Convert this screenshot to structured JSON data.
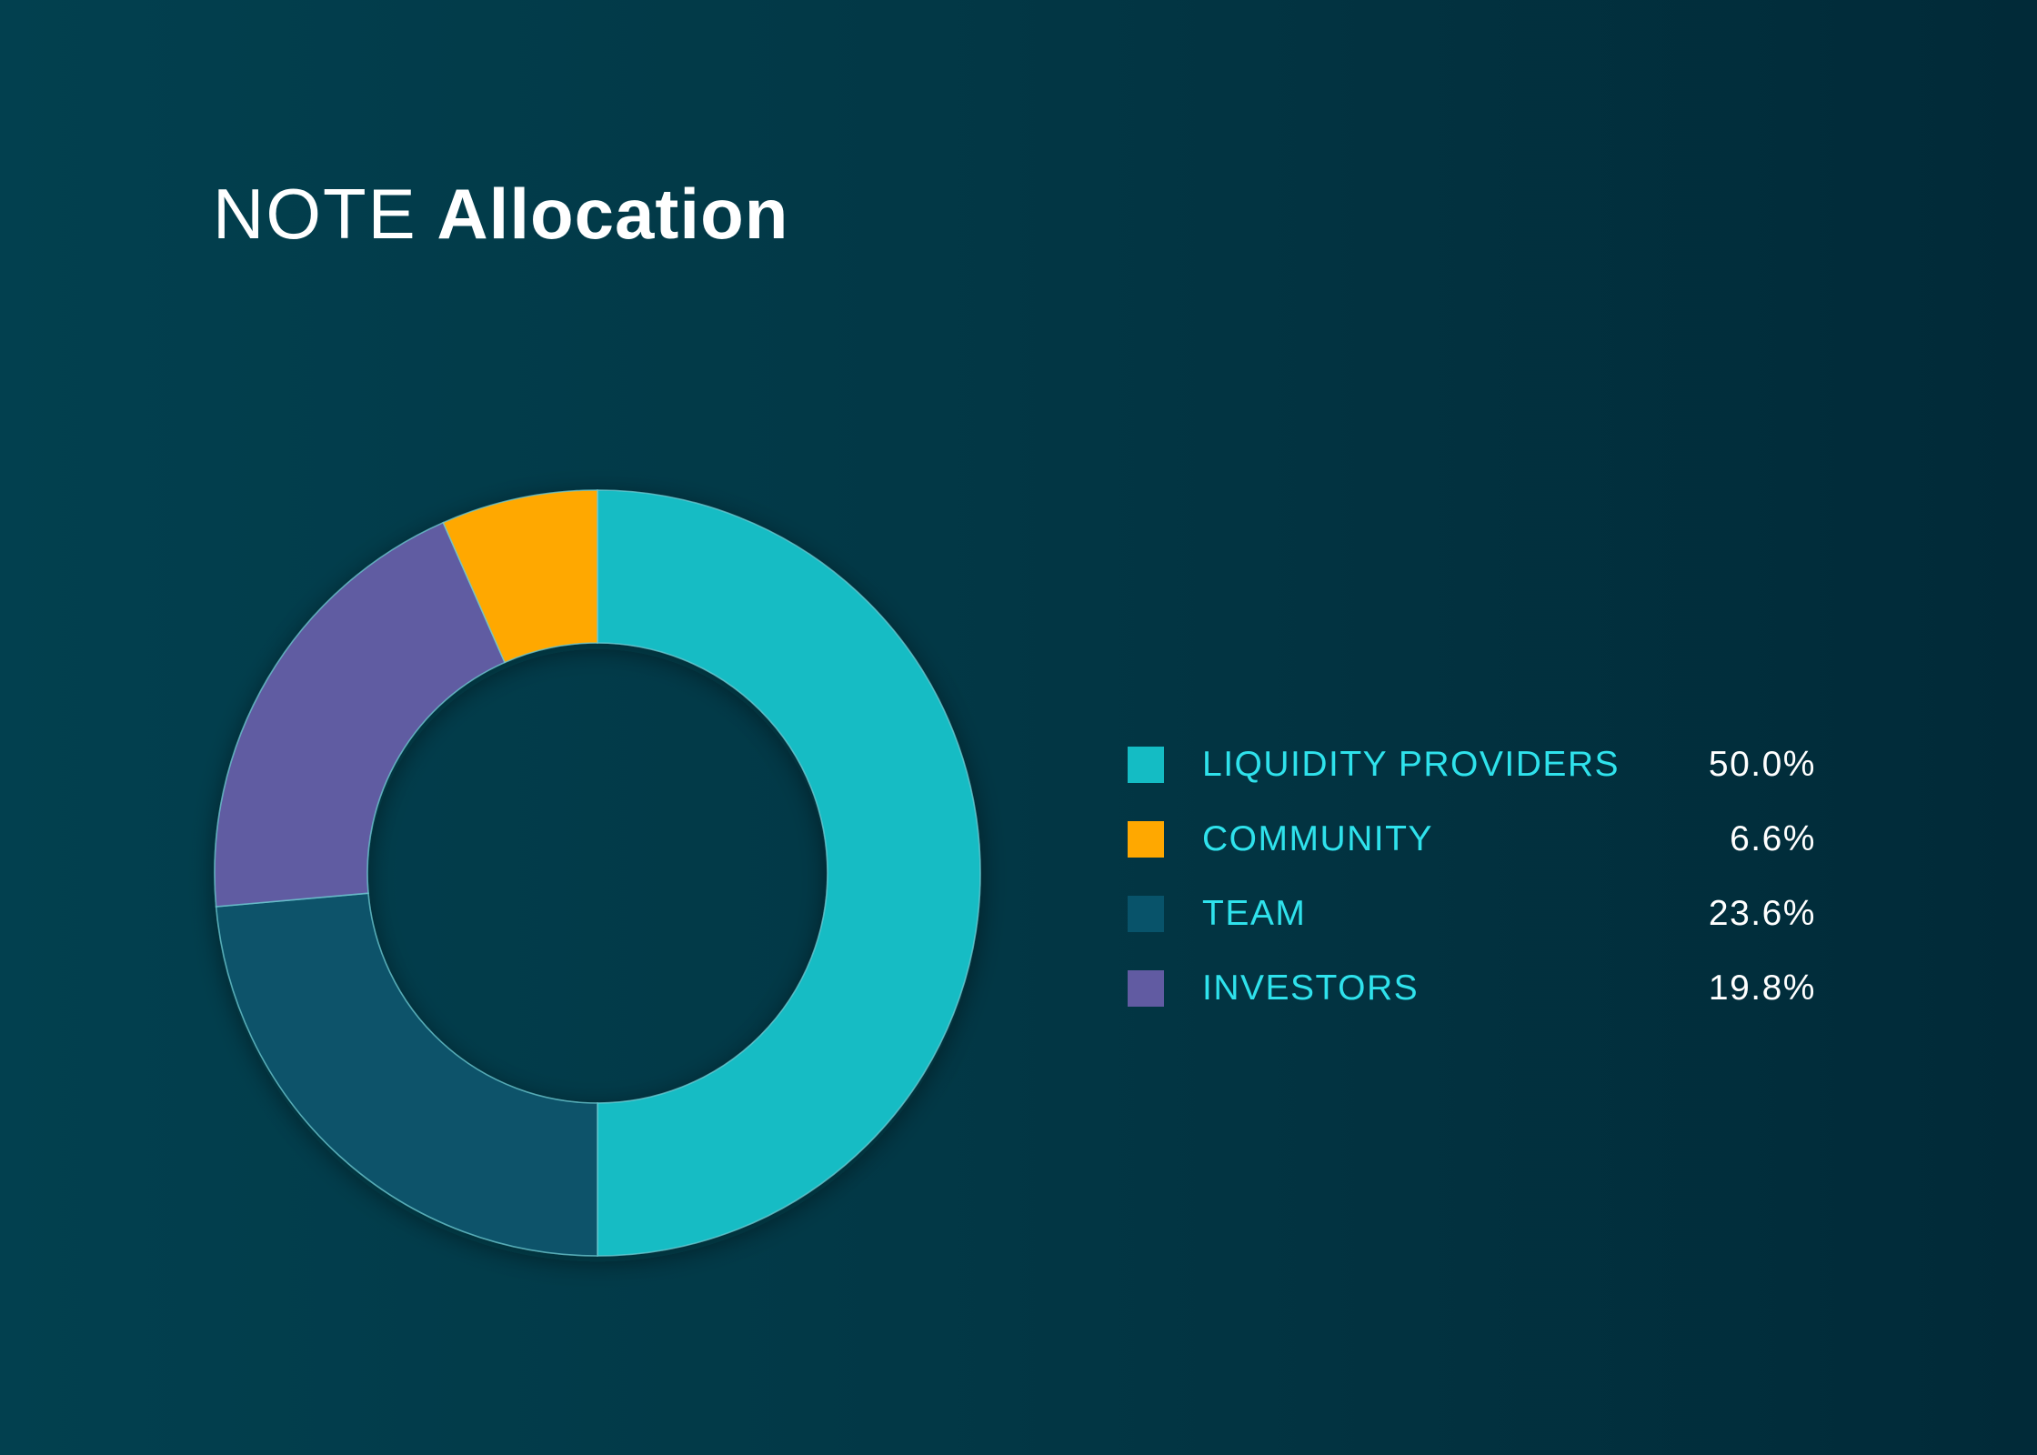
{
  "title": {
    "light": "NOTE",
    "bold": "Allocation"
  },
  "chart_data": {
    "type": "pie",
    "variant": "donut",
    "title": "NOTE Allocation",
    "categories": [
      "LIQUIDITY PROVIDERS",
      "COMMUNITY",
      "TEAM",
      "INVESTORS"
    ],
    "values": [
      50.0,
      6.6,
      23.6,
      19.8
    ],
    "value_labels": [
      "50.0%",
      "6.6%",
      "23.6%",
      "19.8%"
    ],
    "colors": [
      "#14bcc4",
      "#ffa800",
      "#08536a",
      "#615ba2"
    ],
    "drawing_order": [
      "LIQUIDITY PROVIDERS",
      "TEAM",
      "INVESTORS",
      "COMMUNITY"
    ],
    "legend_position": "right"
  },
  "legend": [
    {
      "label": "LIQUIDITY PROVIDERS",
      "value": "50.0%",
      "color": "#14bcc4"
    },
    {
      "label": "COMMUNITY",
      "value": "6.6%",
      "color": "#ffa800"
    },
    {
      "label": "TEAM",
      "value": "23.6%",
      "color": "#08536a"
    },
    {
      "label": "INVESTORS",
      "value": "19.8%",
      "color": "#615ba2"
    }
  ]
}
